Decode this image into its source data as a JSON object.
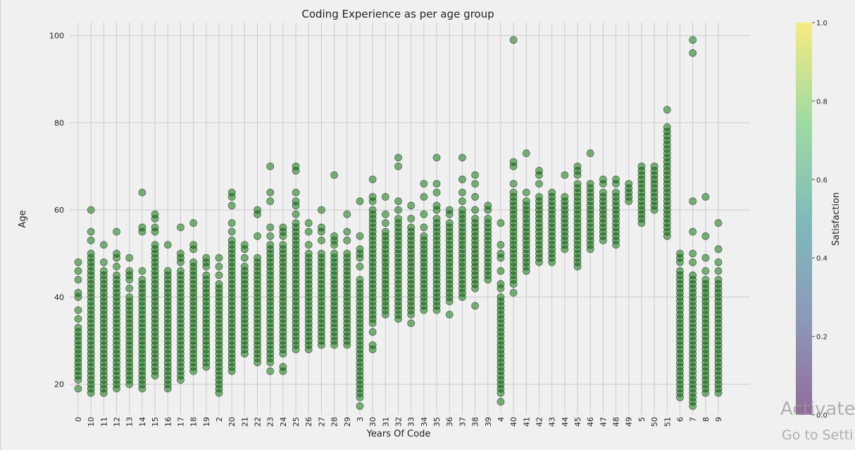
{
  "chart_data": {
    "type": "scatter",
    "title": "Coding Experience as per age group",
    "xlabel": "Years Of Code",
    "ylabel": "Age",
    "ylim": [
      13,
      103
    ],
    "yticks": [
      20,
      40,
      60,
      80,
      100
    ],
    "grid": true,
    "marker_color": "#007000",
    "marker_alpha": 0.5,
    "x_categories": [
      "0",
      "10",
      "11",
      "12",
      "13",
      "14",
      "15",
      "16",
      "17",
      "18",
      "19",
      "2",
      "20",
      "21",
      "22",
      "23",
      "24",
      "25",
      "26",
      "27",
      "28",
      "29",
      "3",
      "30",
      "31",
      "32",
      "33",
      "34",
      "35",
      "36",
      "37",
      "38",
      "39",
      "4",
      "40",
      "41",
      "42",
      "43",
      "44",
      "45",
      "46",
      "47",
      "48",
      "49",
      "5",
      "50",
      "51",
      "6",
      "7",
      "8",
      "9"
    ],
    "series": [
      {
        "category": "0",
        "min": 21,
        "max": 33,
        "outliers": [
          19,
          35,
          37,
          40,
          41,
          44,
          46,
          48
        ]
      },
      {
        "category": "10",
        "min": 18,
        "max": 50,
        "outliers": [
          53,
          55,
          60
        ]
      },
      {
        "category": "11",
        "min": 18,
        "max": 46,
        "outliers": [
          48,
          52
        ]
      },
      {
        "category": "12",
        "min": 19,
        "max": 45,
        "outliers": [
          47,
          49,
          50,
          55
        ]
      },
      {
        "category": "13",
        "min": 20,
        "max": 40,
        "outliers": [
          42,
          44,
          45,
          46,
          49
        ]
      },
      {
        "category": "14",
        "min": 19,
        "max": 44,
        "outliers": [
          46,
          55,
          56,
          64
        ]
      },
      {
        "category": "15",
        "min": 22,
        "max": 52,
        "outliers": [
          55,
          56,
          58,
          59
        ]
      },
      {
        "category": "16",
        "min": 19,
        "max": 46,
        "outliers": [
          52
        ]
      },
      {
        "category": "17",
        "min": 21,
        "max": 46,
        "outliers": [
          48,
          49,
          50,
          56
        ]
      },
      {
        "category": "18",
        "min": 23,
        "max": 48,
        "outliers": [
          51,
          52,
          57
        ]
      },
      {
        "category": "19",
        "min": 24,
        "max": 45,
        "outliers": [
          47,
          48,
          49
        ]
      },
      {
        "category": "2",
        "min": 18,
        "max": 43,
        "outliers": [
          45,
          47,
          49
        ]
      },
      {
        "category": "20",
        "min": 23,
        "max": 53,
        "outliers": [
          55,
          57,
          61,
          63,
          64
        ]
      },
      {
        "category": "21",
        "min": 27,
        "max": 47,
        "outliers": [
          49,
          51,
          52
        ]
      },
      {
        "category": "22",
        "min": 25,
        "max": 49,
        "outliers": [
          54,
          59,
          60
        ]
      },
      {
        "category": "23",
        "min": 25,
        "max": 52,
        "outliers": [
          23,
          54,
          56,
          62,
          64,
          70
        ]
      },
      {
        "category": "24",
        "min": 29,
        "max": 52,
        "outliers": [
          23,
          24,
          27,
          28,
          54,
          55,
          56
        ]
      },
      {
        "category": "25",
        "min": 28,
        "max": 57,
        "outliers": [
          59,
          61,
          62,
          64,
          69,
          70
        ]
      },
      {
        "category": "26",
        "min": 28,
        "max": 50,
        "outliers": [
          52,
          55,
          57
        ]
      },
      {
        "category": "27",
        "min": 29,
        "max": 50,
        "outliers": [
          53,
          55,
          56,
          60
        ]
      },
      {
        "category": "28",
        "min": 30,
        "max": 50,
        "outliers": [
          29,
          52,
          53,
          54,
          68
        ]
      },
      {
        "category": "29",
        "min": 29,
        "max": 50,
        "outliers": [
          53,
          55,
          59
        ]
      },
      {
        "category": "3",
        "min": 17,
        "max": 44,
        "outliers": [
          15,
          47,
          49,
          50,
          51,
          54,
          62
        ]
      },
      {
        "category": "30",
        "min": 34,
        "max": 60,
        "outliers": [
          28,
          29,
          32,
          62,
          63,
          67
        ]
      },
      {
        "category": "31",
        "min": 36,
        "max": 55,
        "outliers": [
          57,
          59,
          63
        ]
      },
      {
        "category": "32",
        "min": 35,
        "max": 58,
        "outliers": [
          60,
          62,
          70,
          72
        ]
      },
      {
        "category": "33",
        "min": 36,
        "max": 56,
        "outliers": [
          34,
          58,
          61
        ]
      },
      {
        "category": "34",
        "min": 37,
        "max": 54,
        "outliers": [
          56,
          59,
          63,
          66
        ]
      },
      {
        "category": "35",
        "min": 37,
        "max": 58,
        "outliers": [
          60,
          61,
          64,
          66,
          72
        ]
      },
      {
        "category": "36",
        "min": 39,
        "max": 57,
        "outliers": [
          36,
          59,
          60
        ]
      },
      {
        "category": "37",
        "min": 40,
        "max": 60,
        "outliers": [
          62,
          64,
          67,
          72
        ]
      },
      {
        "category": "38",
        "min": 42,
        "max": 58,
        "outliers": [
          38,
          60,
          63,
          66,
          68
        ]
      },
      {
        "category": "39",
        "min": 44,
        "max": 58,
        "outliers": [
          60,
          61
        ]
      },
      {
        "category": "4",
        "min": 18,
        "max": 40,
        "outliers": [
          16,
          42,
          43,
          46,
          49,
          50,
          52,
          57
        ]
      },
      {
        "category": "40",
        "min": 43,
        "max": 64,
        "outliers": [
          41,
          66,
          70,
          71,
          99
        ]
      },
      {
        "category": "41",
        "min": 46,
        "max": 62,
        "outliers": [
          64,
          73
        ]
      },
      {
        "category": "42",
        "min": 48,
        "max": 63,
        "outliers": [
          66,
          68,
          69
        ]
      },
      {
        "category": "43",
        "min": 48,
        "max": 62,
        "outliers": [
          63,
          64
        ]
      },
      {
        "category": "44",
        "min": 51,
        "max": 62,
        "outliers": [
          63,
          68
        ]
      },
      {
        "category": "45",
        "min": 47,
        "max": 66,
        "outliers": [
          68,
          69,
          70
        ]
      },
      {
        "category": "46",
        "min": 51,
        "max": 66,
        "outliers": [
          73
        ]
      },
      {
        "category": "47",
        "min": 53,
        "max": 64,
        "outliers": [
          66,
          67
        ]
      },
      {
        "category": "48",
        "min": 52,
        "max": 64,
        "outliers": [
          66,
          67
        ]
      },
      {
        "category": "49",
        "min": 62,
        "max": 66,
        "outliers": []
      },
      {
        "category": "5",
        "min": 57,
        "max": 68,
        "outliers": [
          69,
          70
        ]
      },
      {
        "category": "50",
        "min": 60,
        "max": 70,
        "outliers": []
      },
      {
        "category": "51",
        "min": 54,
        "max": 79,
        "outliers": [
          83
        ]
      },
      {
        "category": "6",
        "min": 17,
        "max": 45,
        "outliers": [
          46,
          48,
          49,
          50
        ]
      },
      {
        "category": "7",
        "min": 15,
        "max": 45,
        "outliers": [
          48,
          50,
          55,
          62,
          96,
          99
        ]
      },
      {
        "category": "8",
        "min": 18,
        "max": 44,
        "outliers": [
          46,
          49,
          54,
          63
        ]
      },
      {
        "category": "9",
        "min": 18,
        "max": 44,
        "outliers": [
          46,
          48,
          51,
          57
        ]
      }
    ],
    "colorbar": {
      "label": "Satisfaction",
      "ticks": [
        "0.0",
        "0.2",
        "0.4",
        "0.6",
        "0.8",
        "1.0"
      ],
      "colors": [
        "#440154",
        "#3b528b",
        "#21918c",
        "#5ec962",
        "#fde725"
      ]
    }
  },
  "watermark": {
    "line1": "Activate",
    "line2": "Go to Setti"
  }
}
